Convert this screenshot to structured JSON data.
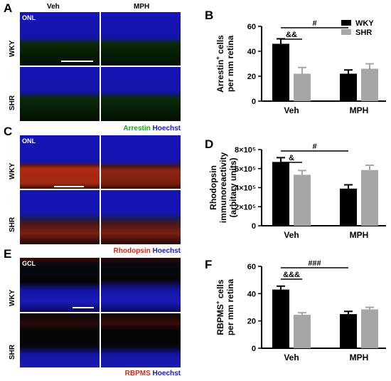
{
  "panels": {
    "A": {
      "label": "A",
      "columns": [
        "Veh",
        "MPH"
      ],
      "rows": [
        "WKY",
        "SHR"
      ],
      "layer_label": "ONL",
      "stain": {
        "marker": "Arrestin",
        "counter": "Hoechst",
        "marker_color": "#1fa31f",
        "counter_color": "#1a1aa8"
      }
    },
    "C": {
      "label": "C",
      "rows": [
        "WKY",
        "SHR"
      ],
      "layer_label": "ONL",
      "stain": {
        "marker": "Rhodopsin",
        "counter": "Hoechst",
        "marker_color": "#c0321c",
        "counter_color": "#1a1aa8"
      }
    },
    "E": {
      "label": "E",
      "rows": [
        "WKY",
        "SHR"
      ],
      "layer_label": "GCL",
      "stain": {
        "marker": "RBPMS",
        "counter": "Hoechst",
        "marker_color": "#c0321c",
        "counter_color": "#1a1aa8"
      }
    }
  },
  "chart_data": [
    {
      "panel": "B",
      "type": "bar",
      "categories": [
        "Veh",
        "MPH"
      ],
      "series": [
        {
          "name": "WKY",
          "color": "#000000",
          "values": [
            46,
            22
          ],
          "errors": [
            4,
            3
          ]
        },
        {
          "name": "SHR",
          "color": "#a6a6a6",
          "values": [
            22,
            26
          ],
          "errors": [
            5,
            4
          ]
        }
      ],
      "ylabel_line1": "Arrestin",
      "ylabel_sup": "+",
      "ylabel_line1_tail": " cells",
      "ylabel_line2": "per mm retina",
      "ylim": [
        0,
        60
      ],
      "yticks": [
        "0",
        "20",
        "40",
        "60"
      ],
      "legend": "top-right",
      "annotations": [
        {
          "text": "&&",
          "from": "Veh-WKY",
          "to": "Veh-SHR"
        },
        {
          "text": "#",
          "from": "Veh-WKY",
          "to": "MPH-WKY"
        }
      ]
    },
    {
      "panel": "D",
      "type": "bar",
      "categories": [
        "Veh",
        "MPH"
      ],
      "series": [
        {
          "name": "WKY",
          "color": "#000000",
          "values": [
            670000,
            390000
          ],
          "errors": [
            45000,
            40000
          ]
        },
        {
          "name": "SHR",
          "color": "#a6a6a6",
          "values": [
            535000,
            585000
          ],
          "errors": [
            45000,
            50000
          ]
        }
      ],
      "ylabel_line1": "Rhodopsin",
      "ylabel_line2": "immunoreactivity",
      "ylabel_line3": "(arbitary units)",
      "ylim": [
        0,
        800000
      ],
      "yticks": [
        "0",
        "2×10⁵",
        "4×10⁵",
        "6×10⁵",
        "8×10⁵"
      ],
      "annotations": [
        {
          "text": "&",
          "from": "Veh-WKY",
          "to": "Veh-SHR"
        },
        {
          "text": "#",
          "from": "Veh-WKY",
          "to": "MPH-WKY"
        }
      ]
    },
    {
      "panel": "F",
      "type": "bar",
      "categories": [
        "Veh",
        "MPH"
      ],
      "series": [
        {
          "name": "WKY",
          "color": "#000000",
          "values": [
            43,
            25
          ],
          "errors": [
            2.5,
            2
          ]
        },
        {
          "name": "SHR",
          "color": "#a6a6a6",
          "values": [
            24.5,
            28.5
          ],
          "errors": [
            1.5,
            1.5
          ]
        }
      ],
      "ylabel_line1": "RBPMS",
      "ylabel_sup": "+",
      "ylabel_line1_tail": " cells",
      "ylabel_line2": "per mm retina",
      "ylim": [
        0,
        60
      ],
      "yticks": [
        "0",
        "20",
        "40",
        "60"
      ],
      "annotations": [
        {
          "text": "&&&",
          "from": "Veh-WKY",
          "to": "Veh-SHR"
        },
        {
          "text": "###",
          "from": "Veh-WKY",
          "to": "MPH-WKY"
        }
      ]
    }
  ]
}
